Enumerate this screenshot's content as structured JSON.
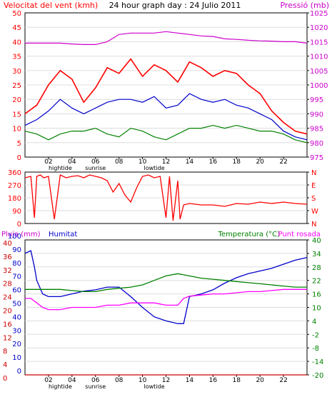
{
  "header": {
    "wind_speed_label": "Velocitat del vent (kmh)",
    "title": "24 hour graph day : 24 Julio 2011",
    "pressure_label": "Pressió (mb)"
  },
  "mid_header": {
    "rain_label": "Pluja (mm)",
    "humidity_label": "Humitat",
    "temperature_label": "Temperatura (°C)",
    "dewpoint_label": "Punt rosada"
  },
  "colors": {
    "wind_speed": "#ff0000",
    "wind_avg": "#0000cc",
    "wind_min": "#008000",
    "pressure": "#cc00cc",
    "direction": "#ff0000",
    "humidity": "#0000cc",
    "temperature": "#008000",
    "dewpoint": "#ff00ff",
    "rain": "#cc0000"
  },
  "chart_data": [
    {
      "type": "line",
      "name": "wind-pressure",
      "x_ticks": [
        "02",
        "04",
        "06",
        "08",
        "10",
        "12",
        "14",
        "16",
        "18",
        "20",
        "22"
      ],
      "event_labels": [
        "hightide",
        "sunrise",
        "lowtide"
      ],
      "y_left": {
        "label": "Velocitat del vent (kmh)",
        "range": [
          0,
          50
        ],
        "ticks": [
          "0",
          "5",
          "10",
          "15",
          "20",
          "25",
          "30",
          "35",
          "40",
          "45",
          "50"
        ]
      },
      "y_right": {
        "label": "Pressió (mb)",
        "range": [
          975,
          1025
        ],
        "ticks": [
          "975",
          "980",
          "985",
          "990",
          "995",
          "1000",
          "1005",
          "1010",
          "1015",
          "1020",
          "1025"
        ]
      },
      "series": [
        {
          "name": "gust",
          "x": [
            0,
            1,
            2,
            3,
            4,
            5,
            6,
            7,
            8,
            9,
            10,
            11,
            12,
            13,
            14,
            15,
            16,
            17,
            18,
            19,
            20,
            21,
            22,
            23,
            24
          ],
          "values": [
            15,
            18,
            25,
            30,
            27,
            19,
            24,
            31,
            29,
            34,
            28,
            32,
            30,
            26,
            33,
            31,
            28,
            30,
            29,
            25,
            22,
            16,
            12,
            9,
            8
          ]
        },
        {
          "name": "average",
          "x": [
            0,
            1,
            2,
            3,
            4,
            5,
            6,
            7,
            8,
            9,
            10,
            11,
            12,
            13,
            14,
            15,
            16,
            17,
            18,
            19,
            20,
            21,
            22,
            23,
            24
          ],
          "values": [
            11,
            13,
            16,
            20,
            17,
            15,
            17,
            19,
            20,
            20,
            19,
            21,
            17,
            18,
            22,
            20,
            19,
            20,
            18,
            17,
            15,
            13,
            9,
            7,
            6
          ]
        },
        {
          "name": "min",
          "x": [
            0,
            1,
            2,
            3,
            4,
            5,
            6,
            7,
            8,
            9,
            10,
            11,
            12,
            13,
            14,
            15,
            16,
            17,
            18,
            19,
            20,
            21,
            22,
            23,
            24
          ],
          "values": [
            9,
            8,
            6,
            8,
            9,
            9,
            10,
            8,
            7,
            10,
            9,
            7,
            6,
            8,
            10,
            10,
            11,
            10,
            11,
            10,
            9,
            9,
            8,
            6,
            5
          ]
        },
        {
          "name": "pressure",
          "x": [
            0,
            1,
            2,
            3,
            4,
            5,
            6,
            7,
            8,
            9,
            10,
            11,
            12,
            13,
            14,
            15,
            16,
            17,
            18,
            19,
            20,
            21,
            22,
            23,
            24
          ],
          "values": [
            1014.5,
            1014.5,
            1014.5,
            1014.5,
            1014.2,
            1014,
            1014,
            1015,
            1017.5,
            1018,
            1018,
            1018,
            1018.5,
            1018,
            1017.5,
            1017,
            1016.8,
            1016,
            1015.8,
            1015.5,
            1015.3,
            1015.2,
            1015,
            1015,
            1014.5
          ]
        }
      ]
    },
    {
      "type": "line",
      "name": "wind-direction",
      "x_ticks": [
        "02",
        "04",
        "06",
        "08",
        "10",
        "12",
        "14",
        "16",
        "18",
        "20",
        "22"
      ],
      "y_left": {
        "range": [
          0,
          360
        ],
        "ticks": [
          "0",
          "90",
          "180",
          "270",
          "360"
        ]
      },
      "y_right": {
        "ticks": [
          "N",
          "W",
          "S",
          "E",
          "N"
        ]
      },
      "series": [
        {
          "name": "direction",
          "x": [
            0,
            0.5,
            0.8,
            1,
            1.3,
            1.6,
            2,
            2.5,
            3,
            3.5,
            4,
            4.5,
            5,
            5.5,
            6,
            6.5,
            7,
            7.5,
            8,
            8.5,
            9,
            9.5,
            10,
            10.5,
            11,
            11.5,
            12,
            12.3,
            12.6,
            13,
            13.2,
            13.5,
            14,
            15,
            16,
            17,
            18,
            19,
            20,
            21,
            22,
            23,
            24
          ],
          "values": [
            320,
            330,
            40,
            330,
            340,
            320,
            330,
            30,
            340,
            320,
            330,
            335,
            320,
            340,
            330,
            320,
            300,
            220,
            280,
            200,
            150,
            250,
            330,
            340,
            320,
            330,
            40,
            330,
            20,
            300,
            30,
            130,
            140,
            130,
            130,
            120,
            140,
            135,
            150,
            140,
            150,
            140,
            135
          ]
        }
      ]
    },
    {
      "type": "line",
      "name": "rain-humidity-temperature",
      "x_ticks": [
        "02",
        "04",
        "06",
        "08",
        "10",
        "12",
        "14",
        "16",
        "18",
        "20",
        "22"
      ],
      "event_labels": [
        "hightide",
        "sunrise",
        "lowtide"
      ],
      "y_left_rain": {
        "ticks": [
          "0",
          "4",
          "8",
          "12",
          "16",
          "20",
          "24",
          "28",
          "32",
          "36",
          "40"
        ]
      },
      "y_left_humidity": {
        "range": [
          0,
          100
        ],
        "ticks": [
          "0",
          "10",
          "20",
          "30",
          "40",
          "50",
          "60",
          "70",
          "80",
          "90",
          "100"
        ]
      },
      "y_right": {
        "range": [
          -20,
          40
        ],
        "ticks": [
          "-20",
          "-14",
          "-8",
          "-2",
          "4",
          "10",
          "16",
          "22",
          "28",
          "34",
          "40"
        ]
      },
      "series": [
        {
          "name": "humidity",
          "x": [
            0,
            0.5,
            0.8,
            1,
            1.5,
            2,
            3,
            4,
            5,
            6,
            7,
            8,
            9,
            10,
            11,
            12,
            13,
            13.5,
            14,
            15,
            16,
            17,
            18,
            19,
            20,
            21,
            22,
            23,
            24
          ],
          "values": [
            90,
            92,
            80,
            70,
            60,
            58,
            58,
            60,
            62,
            63,
            65,
            65,
            58,
            50,
            43,
            40,
            38,
            38,
            58,
            60,
            63,
            68,
            72,
            75,
            77,
            79,
            82,
            85,
            87
          ]
        },
        {
          "name": "temperature",
          "x": [
            0,
            1,
            2,
            3,
            4,
            5,
            6,
            7,
            8,
            9,
            10,
            11,
            12,
            13,
            14,
            15,
            16,
            17,
            18,
            19,
            20,
            21,
            22,
            23,
            24
          ],
          "values": [
            18,
            18,
            18,
            18,
            17.5,
            17,
            17,
            18,
            18.5,
            19,
            20,
            22,
            24,
            25,
            24,
            23,
            22.5,
            22,
            21.5,
            21,
            20.5,
            20,
            19.5,
            19,
            19
          ]
        },
        {
          "name": "dewpoint",
          "x": [
            0,
            0.5,
            1,
            1.5,
            2,
            3,
            4,
            5,
            6,
            7,
            8,
            9,
            10,
            11,
            12,
            13,
            13.5,
            14,
            15,
            16,
            17,
            18,
            19,
            20,
            21,
            22,
            23,
            24
          ],
          "values": [
            14,
            14,
            12,
            10,
            9,
            9,
            10,
            10,
            10,
            11,
            11,
            12,
            12,
            12,
            11,
            11,
            14,
            15,
            15.5,
            16,
            16,
            16.5,
            17,
            17,
            17.5,
            18,
            18,
            18
          ]
        },
        {
          "name": "rain",
          "x": [
            0,
            24
          ],
          "values": [
            0,
            0
          ]
        }
      ]
    }
  ]
}
